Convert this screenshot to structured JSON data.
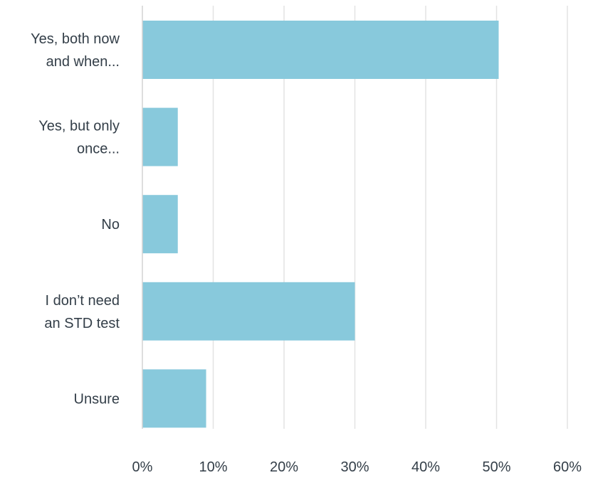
{
  "chart_data": {
    "type": "bar",
    "orientation": "horizontal",
    "categories": [
      [
        "Yes, both now",
        "and when..."
      ],
      [
        "Yes, but only",
        "once..."
      ],
      [
        "No"
      ],
      [
        "I don’t need",
        "an STD test"
      ],
      [
        "Unsure"
      ]
    ],
    "values": [
      50.3,
      5.0,
      5.0,
      30.0,
      9.0
    ],
    "value_unit": "%",
    "xlim": [
      0,
      60
    ],
    "xticks": [
      0,
      10,
      20,
      30,
      40,
      50,
      60
    ],
    "xtick_labels": [
      "0%",
      "10%",
      "20%",
      "30%",
      "40%",
      "50%",
      "60%"
    ],
    "title": "",
    "xlabel": "",
    "ylabel": "",
    "grid": "vertical",
    "legend": "none",
    "colors": {
      "bar": "#88C9DC",
      "grid": "#e3e3e3",
      "axis": "#d3d3d3",
      "text": "#333e48"
    }
  }
}
